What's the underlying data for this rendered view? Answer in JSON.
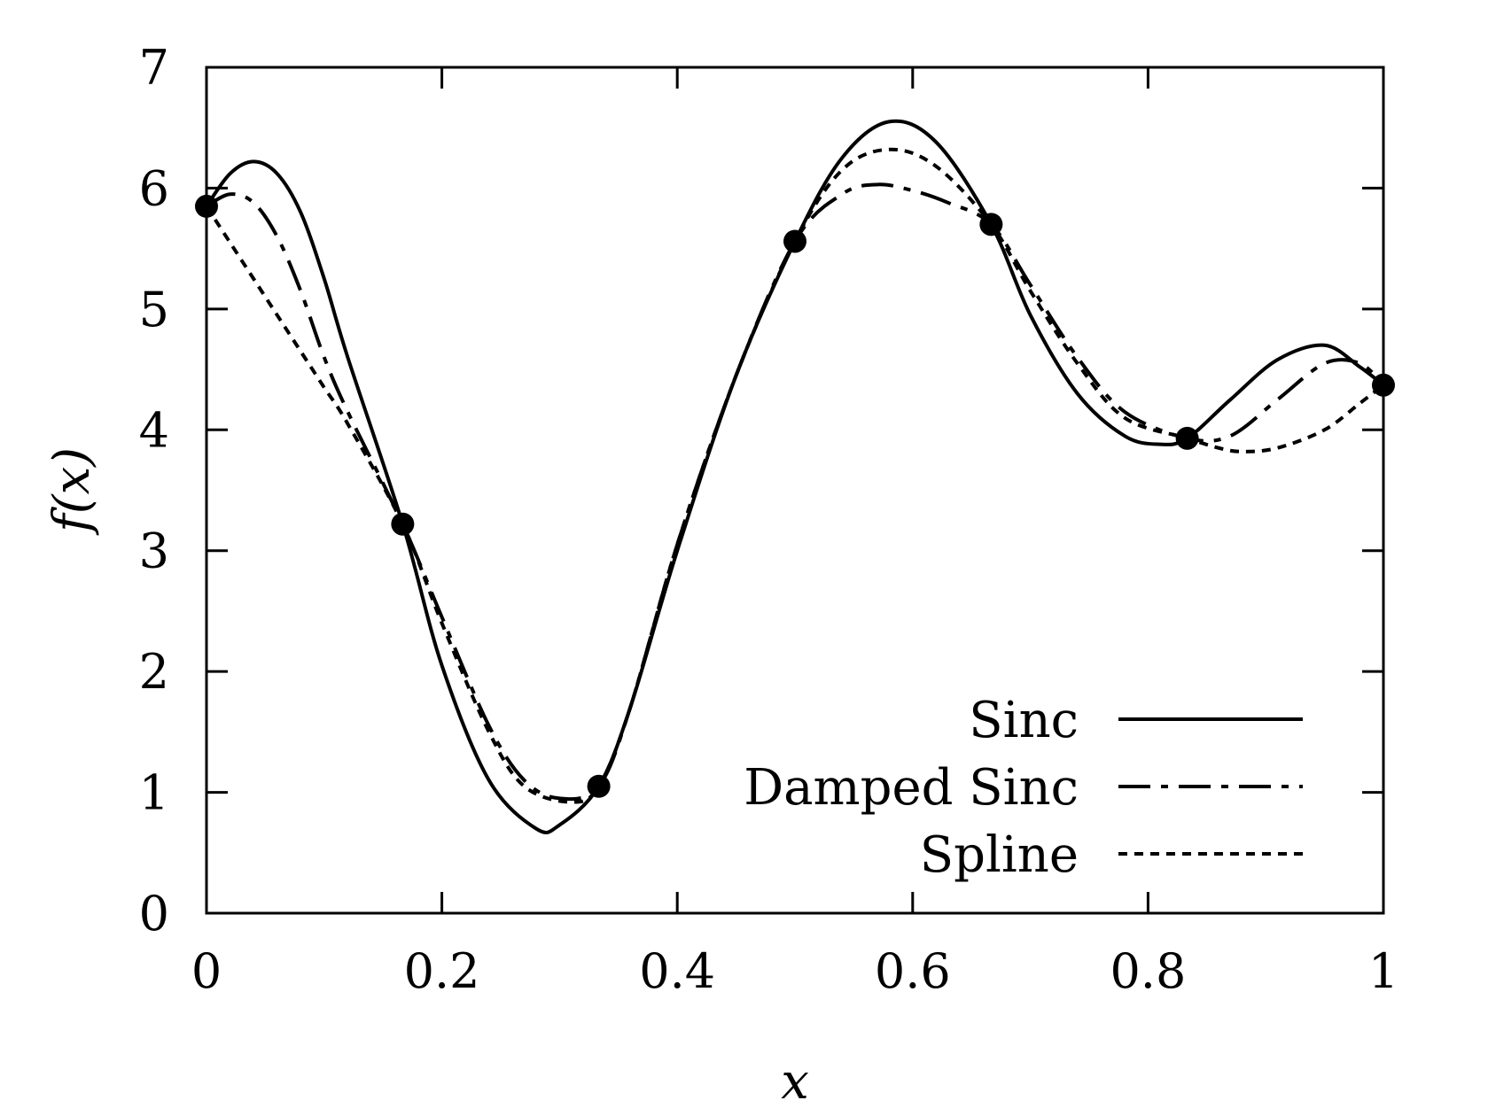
{
  "chart_data": {
    "type": "line",
    "xlabel": "x",
    "ylabel": "f(x)",
    "xlim": [
      0,
      1
    ],
    "ylim": [
      0,
      7
    ],
    "x_ticks": [
      0,
      0.2,
      0.4,
      0.6,
      0.8,
      1
    ],
    "x_tick_labels": [
      "0",
      "0.2",
      "0.4",
      "0.6",
      "0.8",
      "1"
    ],
    "y_ticks": [
      0,
      1,
      2,
      3,
      4,
      5,
      6,
      7
    ],
    "y_tick_labels": [
      "0",
      "1",
      "2",
      "3",
      "4",
      "5",
      "6",
      "7"
    ],
    "grid": false,
    "legend_position": "bottom-right",
    "sample_points": {
      "x": [
        0,
        0.1667,
        0.3333,
        0.5,
        0.6667,
        0.8333,
        1
      ],
      "y": [
        5.85,
        3.22,
        1.05,
        5.56,
        5.7,
        3.93,
        4.37
      ]
    },
    "series": [
      {
        "name": "Sinc",
        "style": "solid",
        "x": [
          0,
          0.02,
          0.04,
          0.06,
          0.08,
          0.1,
          0.12,
          0.1667,
          0.2,
          0.24,
          0.28,
          0.3,
          0.3333,
          0.36,
          0.4,
          0.45,
          0.5,
          0.54,
          0.58,
          0.62,
          0.6667,
          0.7,
          0.74,
          0.78,
          0.81,
          0.8333,
          0.87,
          0.91,
          0.95,
          0.98,
          1
        ],
        "y": [
          5.85,
          6.12,
          6.22,
          6.12,
          5.8,
          5.25,
          4.6,
          3.22,
          2.05,
          1.1,
          0.7,
          0.73,
          1.05,
          1.7,
          3.0,
          4.45,
          5.56,
          6.25,
          6.55,
          6.38,
          5.7,
          4.95,
          4.3,
          3.95,
          3.88,
          3.93,
          4.25,
          4.58,
          4.7,
          4.52,
          4.37
        ]
      },
      {
        "name": "Damped Sinc",
        "style": "dash-dot",
        "x": [
          0,
          0.02,
          0.04,
          0.06,
          0.08,
          0.1,
          0.12,
          0.1667,
          0.2,
          0.24,
          0.27,
          0.3,
          0.3333,
          0.36,
          0.4,
          0.45,
          0.5,
          0.54,
          0.57,
          0.6,
          0.63,
          0.6667,
          0.7,
          0.74,
          0.78,
          0.8333,
          0.87,
          0.91,
          0.95,
          0.98,
          1
        ],
        "y": [
          5.85,
          5.95,
          5.88,
          5.6,
          5.15,
          4.6,
          4.15,
          3.22,
          2.45,
          1.55,
          1.1,
          0.95,
          1.05,
          1.7,
          3.05,
          4.45,
          5.56,
          5.95,
          6.03,
          5.98,
          5.88,
          5.7,
          5.2,
          4.6,
          4.15,
          3.93,
          3.95,
          4.25,
          4.55,
          4.55,
          4.37
        ]
      },
      {
        "name": "Spline",
        "style": "dotted",
        "x": [
          0,
          0.02,
          0.04,
          0.06,
          0.08,
          0.1,
          0.12,
          0.1667,
          0.2,
          0.24,
          0.27,
          0.31,
          0.3333,
          0.36,
          0.4,
          0.45,
          0.5,
          0.54,
          0.58,
          0.62,
          0.6667,
          0.7,
          0.74,
          0.78,
          0.8333,
          0.86,
          0.88,
          0.91,
          0.95,
          0.98,
          1
        ],
        "y": [
          5.85,
          5.55,
          5.25,
          4.95,
          4.65,
          4.35,
          4.05,
          3.22,
          2.4,
          1.5,
          1.05,
          0.92,
          1.05,
          1.7,
          3.05,
          4.45,
          5.56,
          6.15,
          6.32,
          6.18,
          5.7,
          5.15,
          4.55,
          4.1,
          3.93,
          3.85,
          3.82,
          3.85,
          4.0,
          4.22,
          4.37
        ]
      }
    ]
  }
}
